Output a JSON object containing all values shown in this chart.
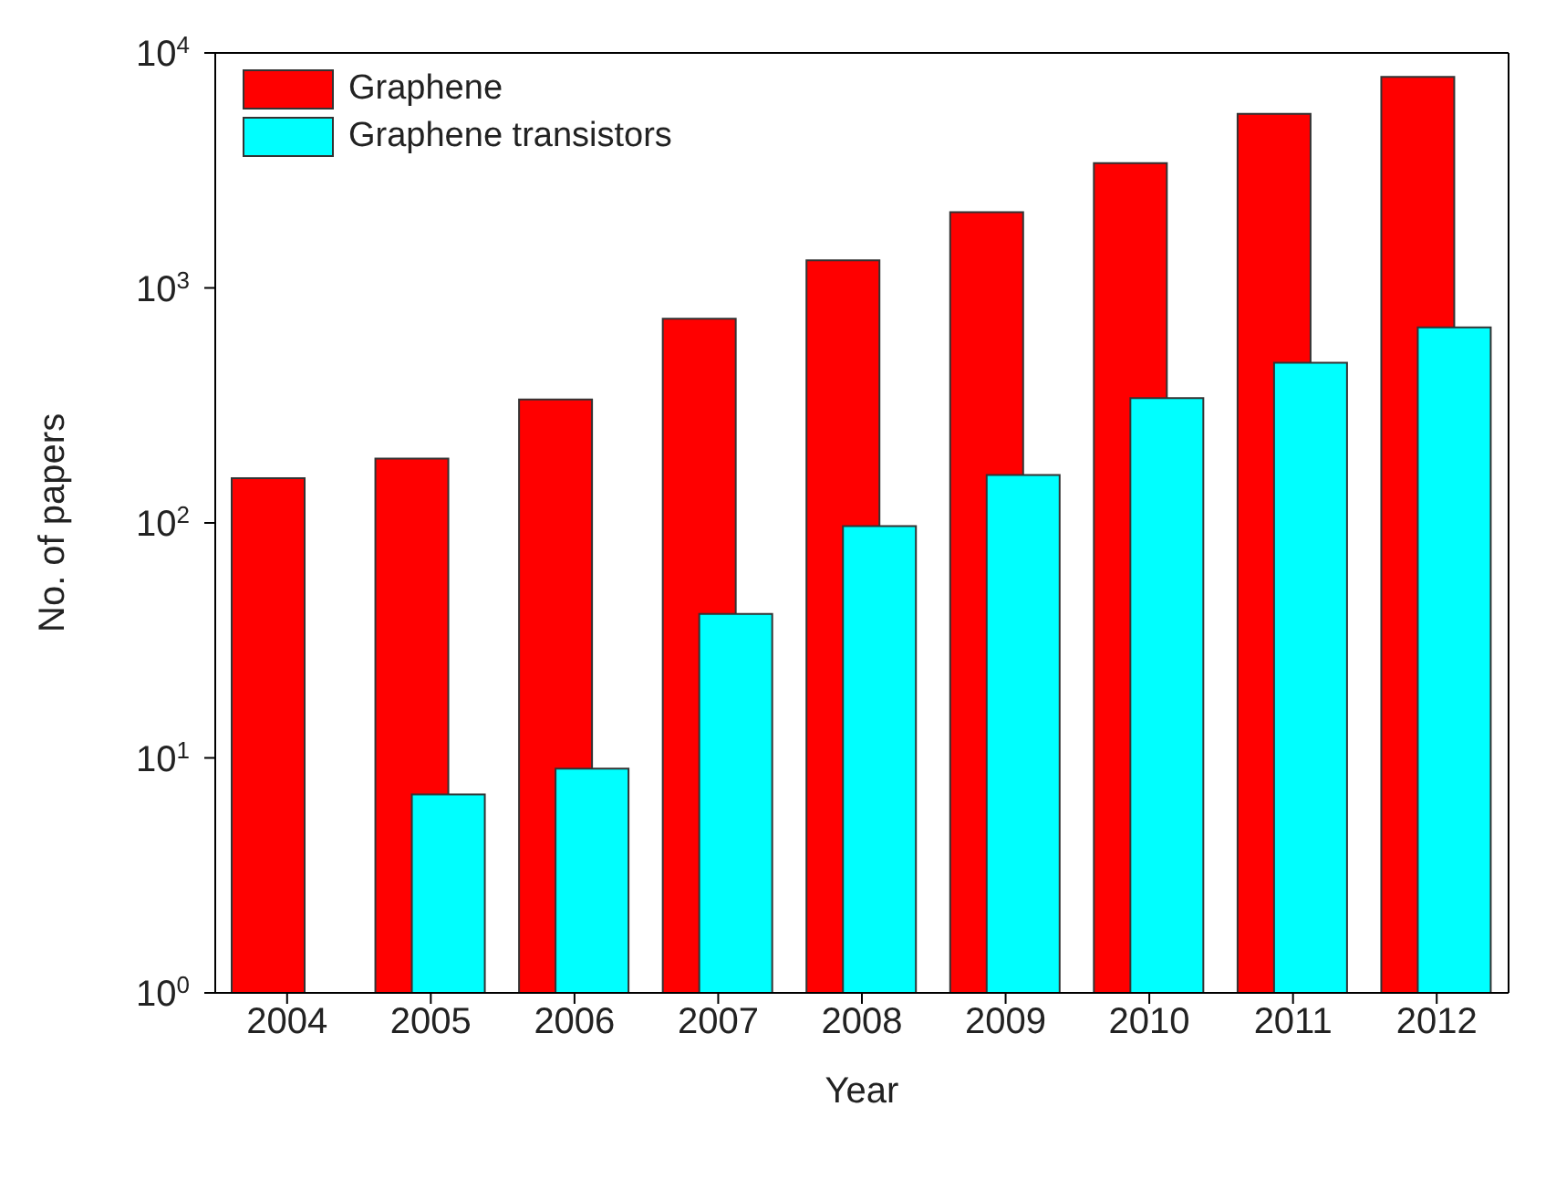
{
  "chart_data": {
    "type": "bar",
    "xlabel": "Year",
    "ylabel": "No. of papers",
    "log": true,
    "categories": [
      "2004",
      "2005",
      "2006",
      "2007",
      "2008",
      "2009",
      "2010",
      "2011",
      "2012"
    ],
    "series": [
      {
        "name": "Graphene",
        "color": "#ff0000",
        "values": [
          155,
          188,
          335,
          740,
          1310,
          2100,
          3400,
          5500,
          7900
        ]
      },
      {
        "name": "Graphene transistors",
        "color": "#00ffff",
        "values": [
          null,
          7,
          9,
          41,
          97,
          160,
          340,
          480,
          680
        ]
      }
    ],
    "ylim": [
      1,
      10000
    ],
    "yticks": [
      {
        "value": 1,
        "label": "10$^{0}$"
      },
      {
        "value": 10,
        "label": "10$^{1}$"
      },
      {
        "value": 100,
        "label": "10$^{2}$"
      },
      {
        "value": 1000,
        "label": "10$^{3}$"
      },
      {
        "value": 10000,
        "label": "10$^{4}$"
      }
    ],
    "legend": "top left",
    "grid": false
  }
}
